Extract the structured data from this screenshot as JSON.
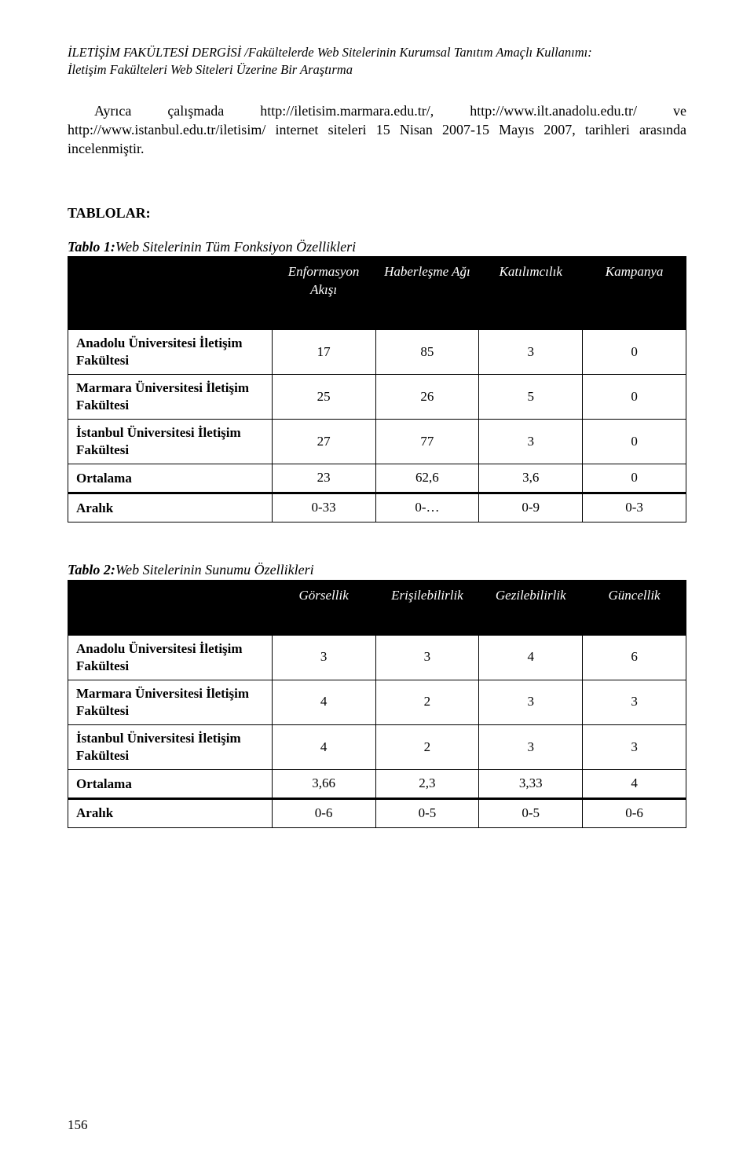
{
  "running_head_line1": "İLETİŞİM FAKÜLTESİ DERGİSİ /Fakültelerde Web Sitelerinin Kurumsal Tanıtım Amaçlı Kullanımı:",
  "running_head_line2": "İletişim Fakülteleri Web Siteleri Üzerine Bir Araştırma",
  "body_paragraph": "Ayrıca çalışmada http://iletisim.marmara.edu.tr/, http://www.ilt.anadolu.edu.tr/ ve http://www.istanbul.edu.tr/iletisim/ internet siteleri 15 Nisan 2007-15 Mayıs 2007, tarihleri arasında incelenmiştir.",
  "tablolar_heading": "TABLOLAR:",
  "table1": {
    "type": "table",
    "caption_label": "Tablo 1:",
    "caption_text": "Web Sitelerinin Tüm Fonksiyon Özellikleri",
    "columns": [
      "Enformasyon Akışı",
      "Haberleşme Ağı",
      "Katılımcılık",
      "Kampanya"
    ],
    "rows": [
      {
        "label": "Anadolu Üniversitesi İletişim Fakültesi",
        "values": [
          "17",
          "85",
          "3",
          "0"
        ]
      },
      {
        "label": "Marmara Üniversitesi İletişim Fakültesi",
        "values": [
          "25",
          "26",
          "5",
          "0"
        ]
      },
      {
        "label": "İstanbul Üniversitesi İletişim Fakültesi",
        "values": [
          "27",
          "77",
          "3",
          "0"
        ]
      },
      {
        "label": "Ortalama",
        "values": [
          "23",
          "62,6",
          "3,6",
          "0"
        ]
      }
    ],
    "footer_row": {
      "label": "Aralık",
      "values": [
        "0-33",
        "0-…",
        "0-9",
        "0-3"
      ]
    },
    "header_bg": "#000000",
    "header_fg": "#ffffff",
    "border_color": "#000000",
    "col_widths_pct": [
      33,
      16.75,
      16.75,
      16.75,
      16.75
    ]
  },
  "table2": {
    "type": "table",
    "caption_label": "Tablo 2:",
    "caption_text": "Web Sitelerinin Sunumu Özellikleri",
    "columns": [
      "Görsellik",
      "Erişilebilirlik",
      "Gezilebilirlik",
      "Güncellik"
    ],
    "rows": [
      {
        "label": "Anadolu Üniversitesi İletişim Fakültesi",
        "values": [
          "3",
          "3",
          "4",
          "6"
        ]
      },
      {
        "label": "Marmara Üniversitesi İletişim Fakültesi",
        "values": [
          "4",
          "2",
          "3",
          "3"
        ]
      },
      {
        "label": "İstanbul Üniversitesi İletişim Fakültesi",
        "values": [
          "4",
          "2",
          "3",
          "3"
        ]
      },
      {
        "label": "Ortalama",
        "values": [
          "3,66",
          "2,3",
          "3,33",
          "4"
        ]
      }
    ],
    "footer_row": {
      "label": "Aralık",
      "values": [
        "0-6",
        "0-5",
        "0-5",
        "0-6"
      ]
    },
    "header_bg": "#000000",
    "header_fg": "#ffffff",
    "border_color": "#000000",
    "col_widths_pct": [
      33,
      16.75,
      16.75,
      16.75,
      16.75
    ]
  },
  "page_number": "156"
}
